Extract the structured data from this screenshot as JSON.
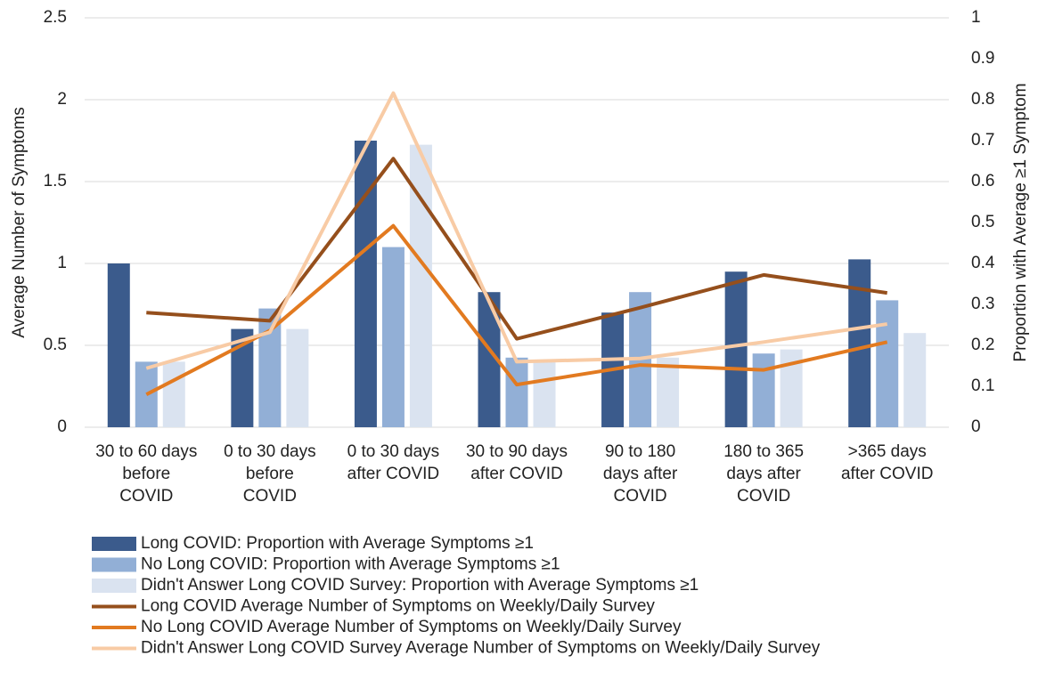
{
  "chart_data": {
    "type": "combo",
    "ylabel": "Average Number of Symptoms",
    "y2label": "Proportion with Average ≥1 Symptom",
    "categories": [
      [
        "30 to 60 days",
        "before",
        "COVID"
      ],
      [
        "0 to 30 days",
        "before",
        "COVID"
      ],
      [
        "0 to 30 days",
        "after COVID"
      ],
      [
        "30 to 90 days",
        "after COVID"
      ],
      [
        "90 to 180",
        "days after",
        "COVID"
      ],
      [
        "180 to 365",
        "days after",
        "COVID"
      ],
      [
        ">365 days",
        "after COVID"
      ]
    ],
    "ylim": [
      0,
      2.5
    ],
    "yticks": [
      0,
      0.5,
      1,
      1.5,
      2,
      2.5
    ],
    "y2lim": [
      0,
      1
    ],
    "y2ticks": [
      0,
      0.1,
      0.2,
      0.3,
      0.4,
      0.5,
      0.6,
      0.7,
      0.8,
      0.9,
      1
    ],
    "grid": true,
    "legend": "bottom",
    "series": [
      {
        "name": "Long COVID: Proportion with Average Symptoms ≥1",
        "type": "bar",
        "axis": "y2",
        "color": "#3b5b8c",
        "values": [
          0.4,
          0.24,
          0.7,
          0.33,
          0.28,
          0.38,
          0.41
        ]
      },
      {
        "name": "No Long COVID: Proportion with Average Symptoms ≥1",
        "type": "bar",
        "axis": "y2",
        "color": "#92afd6",
        "values": [
          0.16,
          0.29,
          0.44,
          0.17,
          0.33,
          0.18,
          0.31
        ]
      },
      {
        "name": "Didn't Answer Long COVID Survey: Proportion with Average Symptoms ≥1",
        "type": "bar",
        "axis": "y2",
        "color": "#dae3f0",
        "values": [
          0.16,
          0.24,
          0.69,
          0.16,
          0.17,
          0.19,
          0.23
        ]
      },
      {
        "name": "Long COVID Average Number of Symptoms on Weekly/Daily Survey",
        "type": "line",
        "axis": "y",
        "color": "#954f1c",
        "values": [
          0.7,
          0.65,
          1.64,
          0.54,
          0.73,
          0.93,
          0.82
        ]
      },
      {
        "name": "No Long COVID  Average Number of Symptoms on Weekly/Daily Survey",
        "type": "line",
        "axis": "y",
        "color": "#e27a20",
        "values": [
          0.2,
          0.59,
          1.23,
          0.26,
          0.38,
          0.35,
          0.52
        ]
      },
      {
        "name": "Didn't Answer Long COVID Survey  Average Number of Symptoms on Weekly/Daily Survey",
        "type": "line",
        "axis": "y",
        "color": "#f8cba5",
        "values": [
          0.36,
          0.58,
          2.04,
          0.4,
          0.42,
          0.52,
          0.63
        ]
      }
    ]
  }
}
